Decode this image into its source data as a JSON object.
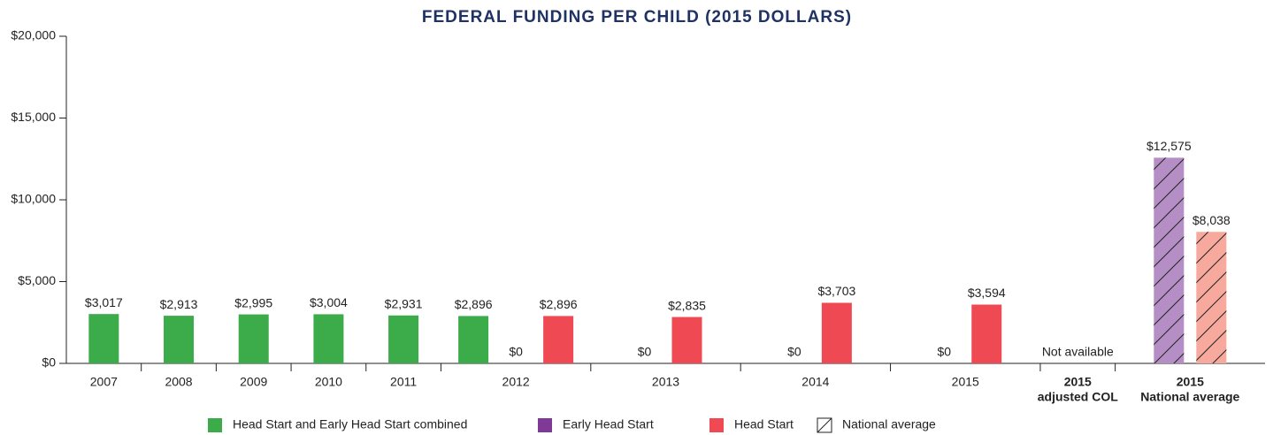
{
  "chart_data": {
    "type": "bar",
    "title": "FEDERAL FUNDING PER CHILD (2015 DOLLARS)",
    "categories": [
      [
        "2007"
      ],
      [
        "2008"
      ],
      [
        "2009"
      ],
      [
        "2010"
      ],
      [
        "2011"
      ],
      [
        "2012"
      ],
      [
        "2013"
      ],
      [
        "2014"
      ],
      [
        "2015"
      ],
      [
        "2015",
        "adjusted COL"
      ],
      [
        "2015",
        "National average"
      ]
    ],
    "series": [
      {
        "name": "Head Start and Early Head Start combined",
        "color": "#3cab4a",
        "hatch_color": "#9fd5a4",
        "values": [
          3017,
          2913,
          2995,
          3004,
          2931,
          2896,
          null,
          null,
          null,
          null,
          null
        ],
        "value_labels": [
          "$3,017",
          "$2,913",
          "$2,995",
          "$3,004",
          "$2,931",
          "$2,896",
          null,
          null,
          null,
          null,
          null
        ]
      },
      {
        "name": "Early Head Start",
        "color": "#7e3a96",
        "hatch_color": "#b48ec4",
        "values": [
          null,
          null,
          null,
          null,
          null,
          0,
          0,
          0,
          0,
          null,
          12575
        ],
        "value_labels": [
          null,
          null,
          null,
          null,
          null,
          "$0",
          "$0",
          "$0",
          "$0",
          null,
          "$12,575"
        ]
      },
      {
        "name": "Head Start",
        "color": "#ef4a53",
        "hatch_color": "#f6a99c",
        "values": [
          null,
          null,
          null,
          null,
          null,
          2896,
          2835,
          3703,
          3594,
          null,
          8038
        ],
        "value_labels": [
          null,
          null,
          null,
          null,
          null,
          "$2,896",
          "$2,835",
          "$3,703",
          "$3,594",
          null,
          "$8,038"
        ]
      }
    ],
    "hatched_categories": [
      10
    ],
    "hatch_legend": "National average",
    "not_available_label": "Not available",
    "ylim": [
      0,
      20000
    ],
    "yticks": [
      {
        "value": 0,
        "label": "$0"
      },
      {
        "value": 5000,
        "label": "$5,000"
      },
      {
        "value": 10000,
        "label": "$10,000"
      },
      {
        "value": 15000,
        "label": "$15,000"
      },
      {
        "value": 20000,
        "label": "$20,000"
      }
    ],
    "grid": false
  }
}
